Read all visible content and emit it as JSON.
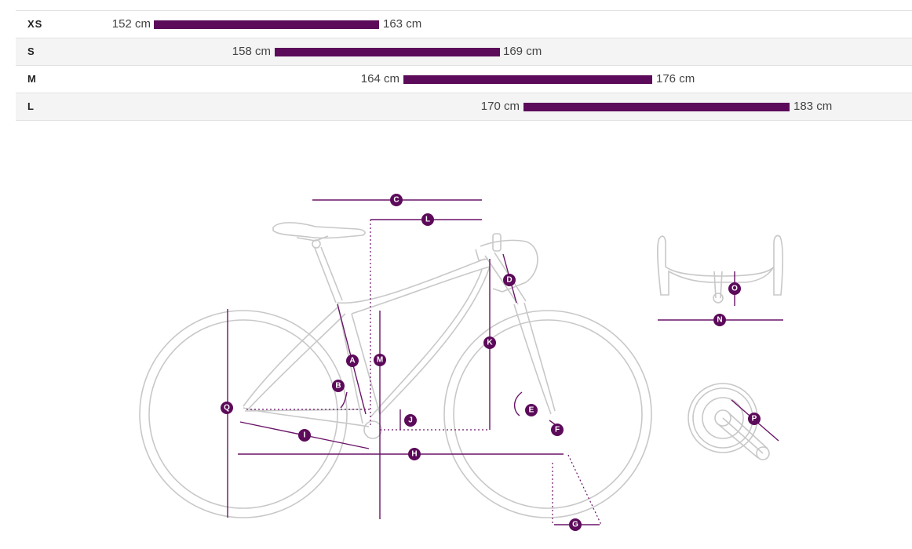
{
  "size_chart": {
    "rows": [
      {
        "size": "XS",
        "min": "152 cm",
        "max": "163 cm"
      },
      {
        "size": "S",
        "min": "158 cm",
        "max": "169 cm"
      },
      {
        "size": "M",
        "min": "164 cm",
        "max": "176 cm"
      },
      {
        "size": "L",
        "min": "170 cm",
        "max": "183 cm"
      }
    ],
    "bar_color": "#5c0a5a"
  },
  "geometry_labels": [
    "A",
    "B",
    "C",
    "D",
    "E",
    "F",
    "G",
    "H",
    "I",
    "J",
    "K",
    "L",
    "M",
    "N",
    "O",
    "P",
    "Q"
  ]
}
